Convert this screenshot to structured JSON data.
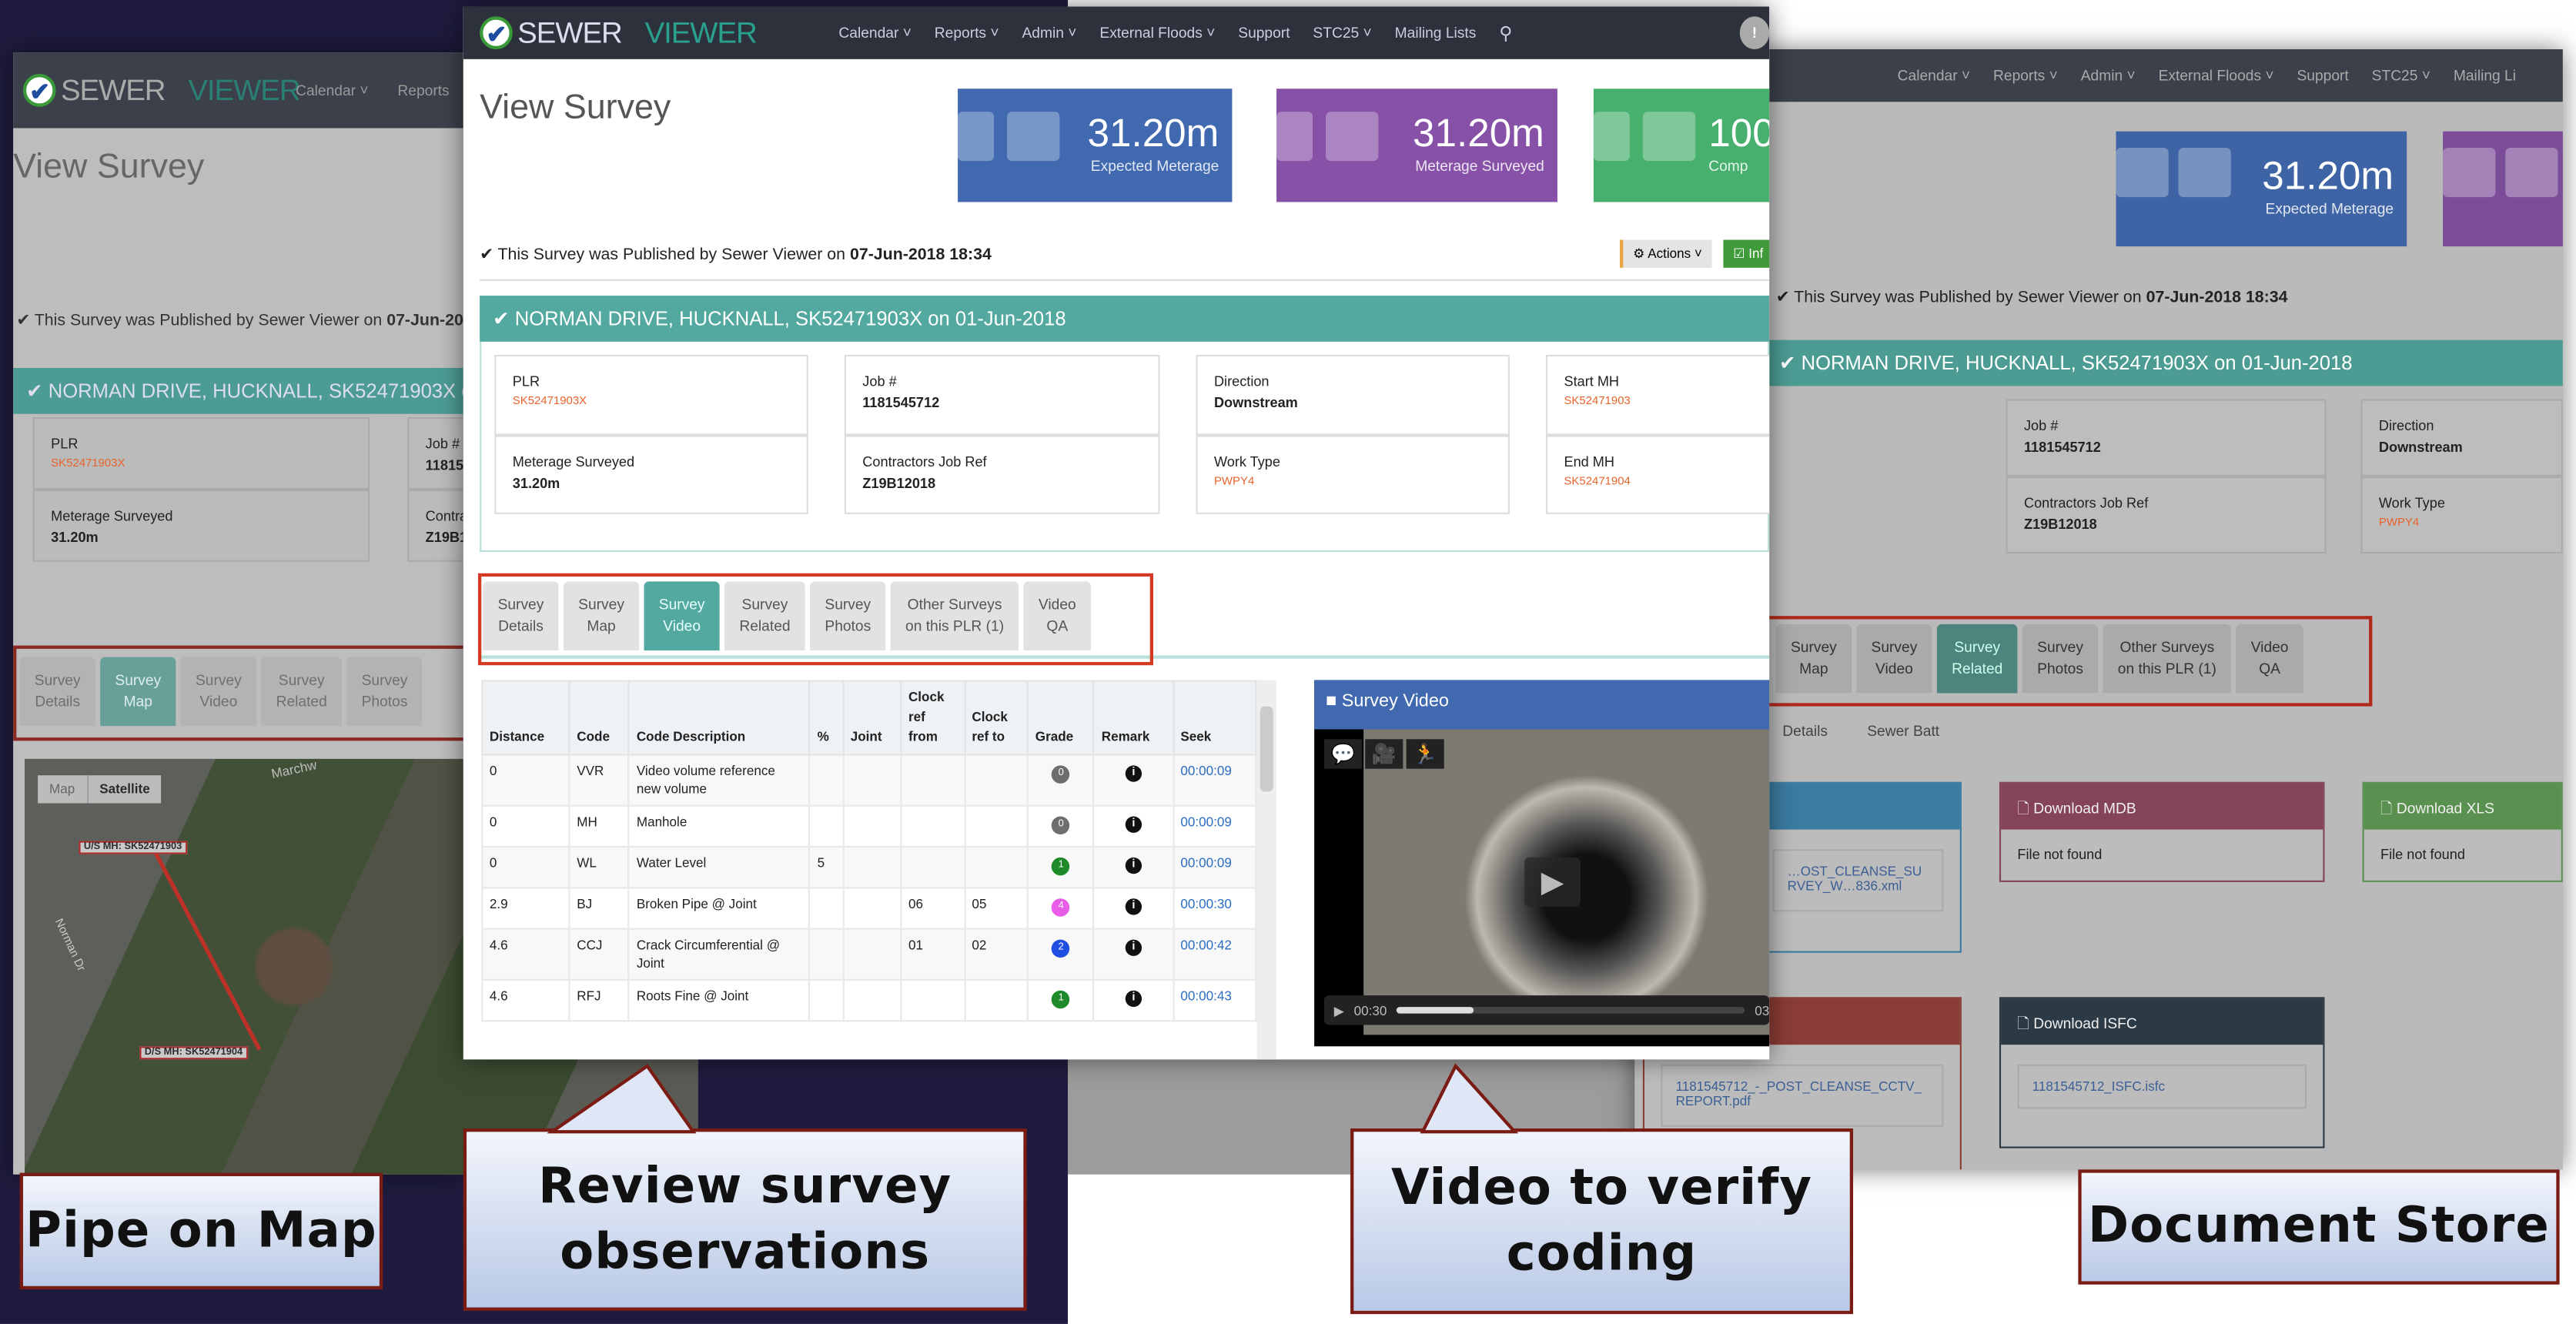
{
  "app": {
    "logo_a": "SEWER",
    "logo_b": "VIEWER"
  },
  "nav_center": [
    "Calendar ˅",
    "Reports ˅",
    "Admin ˅",
    "External Floods ˅",
    "Support",
    "STC25 ˅",
    "Mailing Lists"
  ],
  "nav_left": [
    "Calendar ˅",
    "Reports"
  ],
  "nav_right": [
    "Calendar ˅",
    "Reports ˅",
    "Admin ˅",
    "External Floods ˅",
    "Support",
    "STC25 ˅",
    "Mailing Li"
  ],
  "page_title": "View Survey",
  "stats": [
    {
      "value": "31.20m",
      "label": "Expected Meterage",
      "color": "#4069b0"
    },
    {
      "value": "31.20m",
      "label": "Meterage Surveyed",
      "color": "#8751a8"
    },
    {
      "value": "100",
      "label": "Comp",
      "color": "#47b06f"
    }
  ],
  "published": {
    "prefix": "✔ This Survey was Published by Sewer Viewer on ",
    "date": "07-Jun-2018 18:34"
  },
  "actions_label": "⚙ Actions ˅",
  "info_label": "☑ Inf",
  "survey_header": "✔ NORMAN DRIVE, HUCKNALL, SK52471903X on 01-Jun-2018",
  "info": [
    {
      "label": "PLR",
      "value": "SK52471903X",
      "link": true
    },
    {
      "label": "Job #",
      "value": "1181545712"
    },
    {
      "label": "Direction",
      "value": "Downstream"
    },
    {
      "label": "Start MH",
      "value": "SK52471903",
      "link": true
    },
    {
      "label": "Meterage Surveyed",
      "value": "31.20m"
    },
    {
      "label": "Contractors Job Ref",
      "value": "Z19B12018"
    },
    {
      "label": "Work Type",
      "value": "PWPY4",
      "link": true
    },
    {
      "label": "End MH",
      "value": "SK52471904",
      "link": true
    }
  ],
  "tabs": [
    "Survey\nDetails",
    "Survey\nMap",
    "Survey\nVideo",
    "Survey\nRelated",
    "Survey\nPhotos",
    "Other Surveys\non this PLR (1)",
    "Video\nQA"
  ],
  "table": {
    "headers": [
      "Distance",
      "Code",
      "Code Description",
      "%",
      "Joint",
      "Clock\nref\nfrom",
      "Clock\nref to",
      "Grade",
      "Remark",
      "Seek"
    ],
    "rows": [
      {
        "distance": "0",
        "code": "VVR",
        "desc": "Video volume reference new volume",
        "pct": "",
        "joint": "",
        "from": "",
        "to": "",
        "grade": "0",
        "grade_color": "#6e6e6e",
        "remark": "i",
        "seek": "00:00:09"
      },
      {
        "distance": "0",
        "code": "MH",
        "desc": "Manhole",
        "pct": "",
        "joint": "",
        "from": "",
        "to": "",
        "grade": "0",
        "grade_color": "#6e6e6e",
        "remark": "i",
        "seek": "00:00:09"
      },
      {
        "distance": "0",
        "code": "WL",
        "desc": "Water Level",
        "pct": "5",
        "joint": "",
        "from": "",
        "to": "",
        "grade": "1",
        "grade_color": "#1e8a2a",
        "remark": "i",
        "seek": "00:00:09"
      },
      {
        "distance": "2.9",
        "code": "BJ",
        "desc": "Broken Pipe @ Joint",
        "pct": "",
        "joint": "",
        "from": "06",
        "to": "05",
        "grade": "4",
        "grade_color": "#e85ce8",
        "remark": "i",
        "seek": "00:00:30"
      },
      {
        "distance": "4.6",
        "code": "CCJ",
        "desc": "Crack Circumferential @ Joint",
        "pct": "",
        "joint": "",
        "from": "01",
        "to": "02",
        "grade": "2",
        "grade_color": "#1f4fe0",
        "remark": "i",
        "seek": "00:00:42"
      },
      {
        "distance": "4.6",
        "code": "RFJ",
        "desc": "Roots Fine @ Joint",
        "pct": "",
        "joint": "",
        "from": "",
        "to": "",
        "grade": "1",
        "grade_color": "#1e8a2a",
        "remark": "i",
        "seek": "00:00:43"
      }
    ]
  },
  "video": {
    "title": "■ Survey Video",
    "time": "00:30",
    "end": "03",
    "progress": 0.22
  },
  "map": {
    "map_btn": "Map",
    "satellite_btn": "Satellite",
    "us_label": "U/S MH: SK52471903",
    "ds_label": "D/S MH: SK52471904",
    "street": "Norman Dr",
    "street2": "Marchw"
  },
  "right": {
    "subtabs": [
      "Details",
      "Sewer Batt"
    ],
    "cards": [
      {
        "title": "",
        "file": "…OST_CLEANSE_SURVEY_W…836.xml",
        "color": "#3b7ba1"
      },
      {
        "title": "Download MDB",
        "body": "File not found",
        "color": "#84435a"
      },
      {
        "title": "Download XLS",
        "body": "File not found",
        "color": "#5a9150"
      },
      {
        "title": "",
        "file": "1181545712_-_POST_CLEANSE_CCTV_REPORT.pdf",
        "color": "#8a3c36"
      },
      {
        "title": "Download ISFC",
        "file": "1181545712_ISFC.isfc",
        "color": "#2c3a45"
      }
    ]
  },
  "callouts": [
    "Pipe on Map",
    "Review survey observations",
    "Video to verify coding",
    "Document Store"
  ]
}
